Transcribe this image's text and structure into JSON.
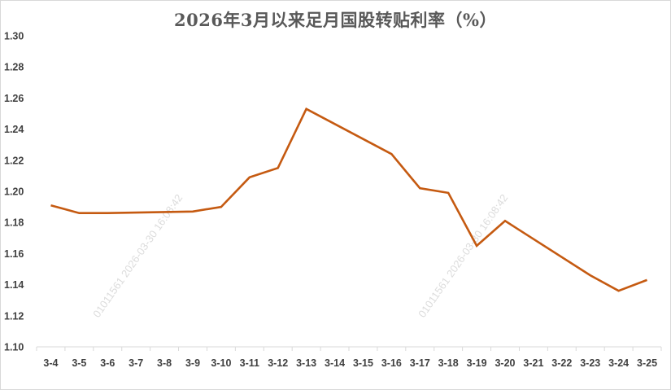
{
  "chart_data": {
    "type": "line",
    "title": "2026年3月以来足月国股转贴利率（%）",
    "xlabel": "",
    "ylabel": "",
    "ylim": [
      1.1,
      1.3
    ],
    "yticks": [
      "1.10",
      "1.12",
      "1.14",
      "1.16",
      "1.18",
      "1.20",
      "1.22",
      "1.24",
      "1.26",
      "1.28",
      "1.30"
    ],
    "categories": [
      "3-4",
      "3-5",
      "3-6",
      "3-7",
      "3-8",
      "3-9",
      "3-10",
      "3-11",
      "3-12",
      "3-13",
      "3-14",
      "3-15",
      "3-16",
      "3-17",
      "3-18",
      "3-19",
      "3-20",
      "3-21",
      "3-22",
      "3-23",
      "3-24",
      "3-25"
    ],
    "series": [
      {
        "values": [
          1.191,
          1.186,
          1.186,
          null,
          null,
          1.187,
          1.19,
          1.209,
          1.215,
          1.253,
          null,
          null,
          1.224,
          1.202,
          1.199,
          1.165,
          1.181,
          null,
          null,
          1.146,
          1.136,
          1.143
        ],
        "color": "#c55a11"
      }
    ],
    "gaps": "connected",
    "grid": false,
    "legend": "none",
    "watermarks": [
      "01011561  2026-03-30  16:08:42",
      "01011561  2026-03-30  16:08:42"
    ]
  }
}
